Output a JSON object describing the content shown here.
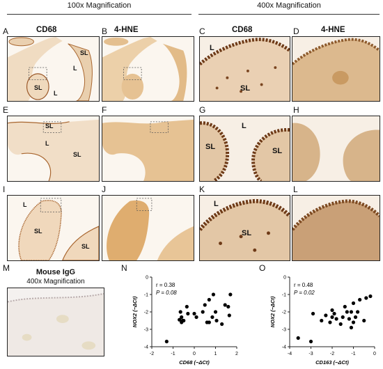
{
  "headers": {
    "left": "100x Magnification",
    "right": "400x Magnification"
  },
  "stains": {
    "cd68": "CD68",
    "hne": "4-HNE"
  },
  "tissue_labels": {
    "sl": "SL",
    "l": "L"
  },
  "panel_letters": [
    "A",
    "B",
    "C",
    "D",
    "E",
    "F",
    "G",
    "H",
    "I",
    "J",
    "K",
    "L",
    "M",
    "N",
    "O"
  ],
  "mouse": {
    "title": "Mouse IgG",
    "subtitle": "400x Magnification"
  },
  "colors": {
    "stain_brown": "#a8652e",
    "bg_tissue": "#e9cfae",
    "light_tissue": "#f3e2cd",
    "cell_dark": "#6e3a17"
  },
  "chart_data": [
    {
      "type": "scatter",
      "panel": "N",
      "xlabel": "CD68 (−ΔCt)",
      "ylabel": "NOX2 (−ΔCt)",
      "xlim": [
        -2,
        2
      ],
      "ylim": [
        -4,
        0
      ],
      "xticks": [
        "-2",
        "-1",
        "0",
        "1",
        "2"
      ],
      "yticks": [
        "0",
        "-1",
        "-2",
        "-3",
        "-4"
      ],
      "annotations": [
        "r = 0.38",
        "P = 0.08"
      ],
      "x": [
        -0.65,
        -0.6,
        -0.7,
        -0.5,
        -0.3,
        -0.35,
        -0.6,
        -0.55,
        0,
        0.1,
        0.4,
        0.5,
        0.6,
        0.7,
        0.85,
        1.0,
        1.05,
        0.7,
        0.9,
        1.3,
        1.45,
        1.6,
        1.65,
        1.7,
        -1.3
      ],
      "y": [
        -2.0,
        -2.3,
        -2.45,
        -2.5,
        -2.1,
        -1.7,
        -2.6,
        -2.5,
        -2.1,
        -2.3,
        -2.0,
        -1.6,
        -2.6,
        -2.6,
        -2.3,
        -2.0,
        -2.5,
        -1.3,
        -1.0,
        -2.7,
        -1.6,
        -1.7,
        -2.2,
        -1.0,
        -3.7
      ]
    },
    {
      "type": "scatter",
      "panel": "O",
      "xlabel": "CD163 (−ΔCt)",
      "ylabel": "NOX2 (−ΔCt)",
      "xlim": [
        -4,
        0
      ],
      "ylim": [
        -4,
        0
      ],
      "xticks": [
        "-4",
        "-3",
        "-2",
        "-1",
        "0"
      ],
      "yticks": [
        "0",
        "-1",
        "-2",
        "-3",
        "-4"
      ],
      "annotations": [
        "r = 0.48",
        "P = 0.02"
      ],
      "x": [
        -3.6,
        -3.0,
        -2.9,
        -2.5,
        -2.3,
        -2.1,
        -2.0,
        -1.8,
        -1.9,
        -1.5,
        -1.4,
        -1.3,
        -1.2,
        -1.1,
        -1.0,
        -0.9,
        -0.8,
        -0.7,
        -1.0,
        -0.5,
        -0.4,
        -0.2,
        -1.6,
        -1.1,
        -2.0
      ],
      "y": [
        -3.5,
        -3.7,
        -2.1,
        -2.5,
        -2.2,
        -2.6,
        -1.9,
        -2.4,
        -2.1,
        -2.3,
        -1.7,
        -2.0,
        -2.4,
        -2.0,
        -1.5,
        -2.3,
        -2.0,
        -1.3,
        -2.6,
        -2.5,
        -1.2,
        -1.1,
        -2.7,
        -2.9,
        -2.3
      ]
    }
  ]
}
